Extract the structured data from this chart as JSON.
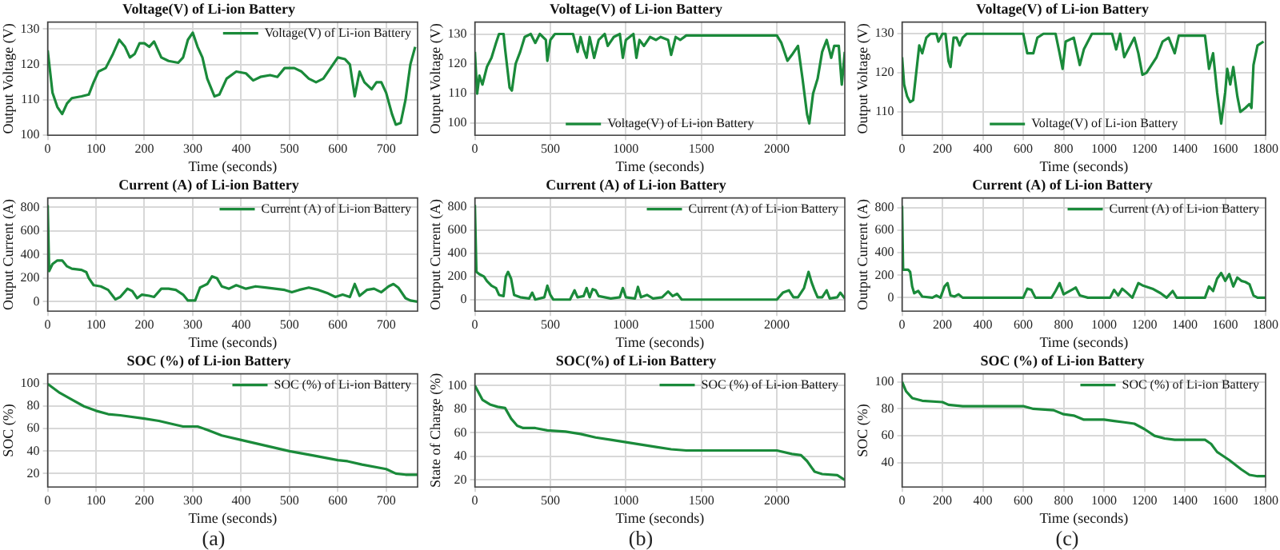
{
  "chart_data": [
    {
      "type": "line",
      "title": "Voltage(V) of Li-ion Battery",
      "xlabel": "Time (seconds)",
      "ylabel": "Output Voltage (V)",
      "xlim": [
        0,
        765
      ],
      "xticks": [
        0,
        100,
        200,
        300,
        400,
        500,
        600,
        700
      ],
      "ylim": [
        100,
        132
      ],
      "yticks": [
        100,
        110,
        120,
        130
      ],
      "grid": true,
      "legend": "top right",
      "x": [
        0,
        5,
        10,
        20,
        30,
        40,
        50,
        70,
        85,
        95,
        105,
        120,
        135,
        148,
        160,
        170,
        180,
        190,
        200,
        210,
        220,
        235,
        250,
        270,
        280,
        290,
        300,
        310,
        320,
        330,
        345,
        355,
        370,
        390,
        410,
        425,
        440,
        460,
        475,
        490,
        510,
        525,
        540,
        555,
        570,
        585,
        600,
        615,
        625,
        635,
        645,
        655,
        670,
        680,
        690,
        700,
        712,
        720,
        730,
        740,
        750,
        760
      ],
      "series": [
        {
          "name": "Voltage(V) of Li-ion Battery",
          "color": "#1a8a3a",
          "values": [
            124,
            118,
            112,
            108,
            106,
            109,
            110.5,
            111,
            111.5,
            115,
            118,
            119,
            123,
            127,
            125,
            122,
            123,
            126,
            126,
            125,
            126.5,
            122,
            121,
            120.5,
            122,
            127,
            129,
            125,
            122,
            116,
            111,
            111.5,
            116,
            118,
            117.5,
            115.5,
            116.5,
            117,
            116.5,
            119,
            119,
            118,
            116,
            115,
            116,
            119,
            122,
            121.5,
            120,
            111,
            118,
            115,
            113,
            115,
            115,
            112,
            106,
            103,
            103.5,
            110,
            120,
            125
          ]
        }
      ]
    },
    {
      "type": "line",
      "title": "Voltage(V) of Li-ion Battery",
      "xlabel": "Time (seconds)",
      "ylabel": "Output Voltage (V)",
      "xlim": [
        0,
        2450
      ],
      "xticks": [
        0,
        500,
        1000,
        1500,
        2000
      ],
      "ylim": [
        96,
        134
      ],
      "yticks": [
        100,
        110,
        120,
        130
      ],
      "grid": true,
      "legend": "bottom",
      "x": [
        0,
        15,
        30,
        50,
        80,
        110,
        140,
        160,
        190,
        200,
        230,
        245,
        270,
        300,
        330,
        370,
        400,
        430,
        470,
        480,
        500,
        530,
        650,
        680,
        700,
        720,
        740,
        760,
        790,
        820,
        860,
        880,
        920,
        960,
        980,
        1000,
        1050,
        1070,
        1090,
        1120,
        1160,
        1200,
        1230,
        1280,
        1300,
        1330,
        1360,
        1400,
        2000,
        2030,
        2070,
        2100,
        2140,
        2170,
        2200,
        2215,
        2240,
        2270,
        2300,
        2330,
        2360,
        2380,
        2410,
        2430,
        2450
      ],
      "series": [
        {
          "name": "Voltage(V) of Li-ion Battery",
          "color": "#1a8a3a",
          "values": [
            124,
            110,
            116,
            113,
            119,
            122,
            127,
            130,
            130,
            125,
            112,
            111,
            120,
            124,
            129,
            130,
            127,
            130,
            128,
            121,
            128,
            130,
            130,
            124,
            129,
            125,
            122,
            129,
            122,
            128,
            130,
            126,
            129,
            130,
            122,
            128,
            130,
            122,
            128,
            126,
            129,
            128,
            129,
            128,
            123,
            129,
            128,
            129.5,
            129.5,
            127,
            121,
            123,
            126,
            115,
            103,
            100,
            110,
            115,
            124,
            128,
            122,
            126,
            126,
            113,
            124
          ]
        }
      ]
    },
    {
      "type": "line",
      "title": "Voltage(V) of Li-ion Battery",
      "xlabel": "Time (seconds)",
      "ylabel": "Output Voltage (V)",
      "xlim": [
        0,
        1800
      ],
      "xticks": [
        0,
        200,
        400,
        600,
        800,
        1000,
        1200,
        1400,
        1600,
        1800
      ],
      "ylim": [
        104,
        133
      ],
      "yticks": [
        110,
        120,
        130
      ],
      "grid": true,
      "legend": "bottom",
      "x": [
        0,
        10,
        25,
        40,
        55,
        70,
        85,
        100,
        120,
        140,
        170,
        180,
        200,
        215,
        230,
        240,
        255,
        270,
        285,
        300,
        320,
        600,
        620,
        650,
        670,
        700,
        760,
        780,
        795,
        810,
        850,
        880,
        900,
        940,
        1040,
        1060,
        1080,
        1100,
        1120,
        1150,
        1170,
        1190,
        1210,
        1260,
        1290,
        1320,
        1350,
        1370,
        1500,
        1520,
        1540,
        1560,
        1580,
        1600,
        1610,
        1625,
        1640,
        1660,
        1675,
        1700,
        1720,
        1730,
        1740,
        1760,
        1790
      ],
      "series": [
        {
          "name": "Voltage(V) of Li-ion Battery",
          "color": "#1a8a3a",
          "values": [
            124,
            117,
            114,
            112.5,
            113,
            120,
            127,
            125,
            129,
            130,
            130,
            128,
            130,
            130,
            123,
            121.5,
            129,
            129,
            127,
            129,
            130,
            130,
            125,
            125,
            129,
            130,
            130,
            125,
            121,
            128,
            129,
            122,
            126,
            130,
            130,
            126,
            130,
            124,
            126,
            129,
            125,
            119.5,
            120,
            124,
            128,
            129,
            125,
            129.5,
            129.5,
            121,
            125,
            115,
            107,
            115,
            121,
            117,
            121.5,
            114,
            110,
            111,
            112,
            111,
            122,
            127,
            128
          ]
        }
      ]
    },
    {
      "type": "line",
      "title": "Current (A) of Li-ion Battery",
      "xlabel": "Time (seconds)",
      "ylabel": "Output Current (A)",
      "xlim": [
        0,
        765
      ],
      "xticks": [
        0,
        100,
        200,
        300,
        400,
        500,
        600,
        700
      ],
      "ylim": [
        -80,
        880
      ],
      "yticks": [
        0,
        200,
        400,
        600,
        800
      ],
      "grid": true,
      "legend": "top right",
      "x": [
        0,
        3,
        10,
        20,
        30,
        40,
        50,
        70,
        80,
        85,
        95,
        110,
        125,
        140,
        150,
        165,
        175,
        185,
        195,
        210,
        220,
        235,
        250,
        265,
        280,
        290,
        305,
        315,
        330,
        340,
        350,
        360,
        375,
        390,
        410,
        430,
        450,
        470,
        490,
        505,
        520,
        540,
        560,
        580,
        595,
        610,
        625,
        635,
        645,
        660,
        675,
        690,
        705,
        715,
        725,
        740,
        750,
        765
      ],
      "series": [
        {
          "name": "Current (A) of Li-ion Battery",
          "color": "#1a8a3a",
          "values": [
            820,
            260,
            320,
            350,
            350,
            300,
            280,
            270,
            250,
            200,
            140,
            130,
            100,
            20,
            40,
            110,
            90,
            30,
            60,
            50,
            40,
            110,
            110,
            100,
            60,
            10,
            10,
            120,
            150,
            215,
            200,
            130,
            110,
            140,
            110,
            130,
            120,
            110,
            100,
            80,
            100,
            120,
            100,
            70,
            40,
            60,
            40,
            150,
            50,
            100,
            110,
            80,
            130,
            150,
            120,
            30,
            10,
            0
          ]
        }
      ]
    },
    {
      "type": "line",
      "title": "Current (A) of Li-ion Battery",
      "xlabel": "Time (seconds)",
      "ylabel": "Output Current (A)",
      "xlim": [
        0,
        2450
      ],
      "xticks": [
        0,
        500,
        1000,
        1500,
        2000
      ],
      "ylim": [
        -100,
        880
      ],
      "yticks": [
        0,
        200,
        400,
        600,
        800
      ],
      "grid": true,
      "legend": "top right",
      "x": [
        0,
        10,
        30,
        60,
        80,
        110,
        140,
        160,
        190,
        205,
        220,
        240,
        260,
        300,
        360,
        380,
        400,
        460,
        480,
        500,
        520,
        630,
        660,
        680,
        720,
        740,
        760,
        780,
        800,
        820,
        860,
        900,
        960,
        980,
        1000,
        1060,
        1080,
        1100,
        1140,
        1180,
        1240,
        1280,
        1310,
        1340,
        1370,
        2000,
        2040,
        2080,
        2110,
        2140,
        2180,
        2210,
        2230,
        2250,
        2270,
        2300,
        2330,
        2350,
        2400,
        2420,
        2450
      ],
      "series": [
        {
          "name": "Current (A) of Li-ion Battery",
          "color": "#1a8a3a",
          "values": [
            820,
            240,
            220,
            200,
            160,
            120,
            100,
            40,
            30,
            200,
            240,
            180,
            40,
            20,
            10,
            60,
            0,
            20,
            120,
            40,
            0,
            0,
            80,
            20,
            30,
            100,
            20,
            90,
            80,
            30,
            20,
            10,
            20,
            100,
            20,
            10,
            110,
            20,
            40,
            10,
            20,
            70,
            30,
            50,
            0,
            0,
            60,
            80,
            20,
            20,
            100,
            240,
            150,
            80,
            20,
            20,
            80,
            10,
            20,
            60,
            10
          ]
        }
      ]
    },
    {
      "type": "line",
      "title": "Current (A) of Li-ion Battery",
      "xlabel": "Time (seconds)",
      "ylabel": "Output Current (A)",
      "xlim": [
        0,
        1800
      ],
      "xticks": [
        0,
        200,
        400,
        600,
        800,
        1000,
        1200,
        1400,
        1600,
        1800
      ],
      "ylim": [
        -120,
        890
      ],
      "yticks": [
        0,
        200,
        400,
        600,
        800
      ],
      "grid": true,
      "legend": "top right",
      "x": [
        0,
        5,
        30,
        40,
        50,
        60,
        80,
        100,
        150,
        170,
        190,
        210,
        225,
        240,
        260,
        280,
        300,
        600,
        620,
        640,
        660,
        740,
        760,
        780,
        800,
        840,
        860,
        880,
        920,
        1030,
        1050,
        1070,
        1090,
        1110,
        1140,
        1170,
        1190,
        1240,
        1280,
        1310,
        1340,
        1360,
        1500,
        1520,
        1540,
        1560,
        1580,
        1600,
        1620,
        1640,
        1660,
        1680,
        1700,
        1720,
        1740,
        1760,
        1800
      ],
      "series": [
        {
          "name": "Current (A) of Li-ion Battery",
          "color": "#1a8a3a",
          "values": [
            820,
            250,
            250,
            230,
            100,
            40,
            60,
            10,
            0,
            20,
            0,
            100,
            130,
            20,
            10,
            30,
            0,
            0,
            80,
            70,
            0,
            0,
            60,
            130,
            30,
            70,
            90,
            20,
            0,
            0,
            70,
            20,
            80,
            50,
            0,
            130,
            110,
            80,
            40,
            0,
            60,
            0,
            0,
            100,
            60,
            170,
            220,
            150,
            210,
            100,
            180,
            150,
            140,
            120,
            20,
            0,
            0
          ]
        }
      ]
    },
    {
      "type": "line",
      "title": "SOC (%) of Li-ion Battery",
      "xlabel": "Time (seconds)",
      "ylabel": "SOC (%)",
      "xlim": [
        0,
        765
      ],
      "xticks": [
        0,
        100,
        200,
        300,
        400,
        500,
        600,
        700
      ],
      "ylim": [
        8,
        109
      ],
      "yticks": [
        20,
        40,
        60,
        80,
        100
      ],
      "grid": true,
      "legend": "top right",
      "annotations": [
        "(a)"
      ],
      "x": [
        0,
        25,
        50,
        75,
        100,
        125,
        150,
        200,
        230,
        260,
        280,
        310,
        330,
        360,
        400,
        450,
        500,
        550,
        600,
        620,
        650,
        700,
        720,
        740,
        765
      ],
      "series": [
        {
          "name": "SOC (%) of Li-ion Battery",
          "color": "#1a8a3a",
          "values": [
            100,
            92,
            86,
            80,
            76,
            73,
            72,
            69,
            67,
            64,
            62,
            62,
            59,
            54,
            50,
            45,
            40,
            36,
            32,
            31,
            28,
            24,
            20,
            19,
            19
          ]
        }
      ]
    },
    {
      "type": "line",
      "title": "SOC(%) of Li-ion Battery",
      "xlabel": "Time (seconds)",
      "ylabel": "State of Charge (%)",
      "xlim": [
        0,
        2450
      ],
      "xticks": [
        0,
        500,
        1000,
        1500,
        2000
      ],
      "ylim": [
        14,
        110
      ],
      "yticks": [
        20,
        40,
        60,
        80,
        100
      ],
      "grid": true,
      "legend": "top right",
      "annotations": [
        "(b)"
      ],
      "x": [
        0,
        50,
        100,
        150,
        200,
        240,
        280,
        320,
        400,
        480,
        600,
        700,
        800,
        900,
        1000,
        1100,
        1200,
        1300,
        1400,
        2000,
        2100,
        2160,
        2200,
        2250,
        2300,
        2400,
        2450
      ],
      "series": [
        {
          "name": "SOC (%) of Li-ion Battery",
          "color": "#1a8a3a",
          "values": [
            100,
            88,
            84,
            82,
            81,
            72,
            66,
            64,
            64,
            62,
            61,
            59,
            56,
            54,
            52,
            50,
            48,
            46,
            45,
            45,
            42,
            41,
            36,
            27,
            25,
            24,
            20
          ]
        }
      ]
    },
    {
      "type": "line",
      "title": "SOC (%) of Li-ion Battery",
      "xlabel": "Time (seconds)",
      "ylabel": "SOC (%)",
      "xlim": [
        0,
        1800
      ],
      "xticks": [
        0,
        200,
        400,
        600,
        800,
        1000,
        1200,
        1400,
        1600,
        1800
      ],
      "ylim": [
        22,
        106
      ],
      "yticks": [
        40,
        60,
        80,
        100
      ],
      "grid": true,
      "legend": "top right",
      "annotations": [
        "(c)"
      ],
      "x": [
        0,
        20,
        50,
        100,
        200,
        230,
        300,
        600,
        650,
        750,
        800,
        850,
        900,
        1000,
        1050,
        1100,
        1150,
        1200,
        1250,
        1300,
        1350,
        1500,
        1530,
        1560,
        1620,
        1680,
        1720,
        1760,
        1800
      ],
      "series": [
        {
          "name": "SOC (%) of Li-ion Battery",
          "color": "#1a8a3a",
          "values": [
            100,
            93,
            88,
            86,
            85,
            83,
            82,
            82,
            80,
            79,
            76,
            75,
            72,
            72,
            71,
            70,
            69,
            65,
            60,
            58,
            57,
            57,
            54,
            48,
            42,
            35,
            31,
            30,
            30
          ]
        }
      ]
    }
  ]
}
